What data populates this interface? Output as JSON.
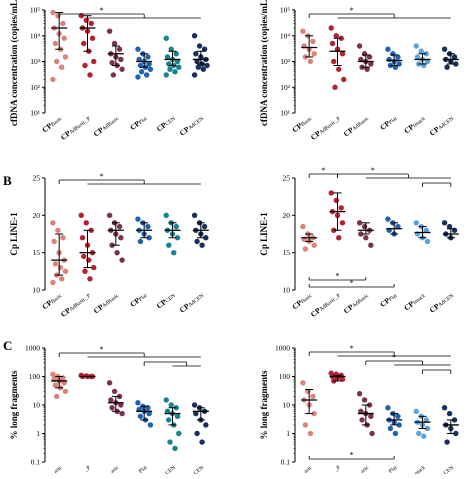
{
  "figure": {
    "panel_labels": [
      "B",
      "C"
    ]
  },
  "chart_data": [
    {
      "id": "A-left",
      "type": "scatter",
      "panel": "A",
      "ylabel": "cfDNA concentration (copies/mL)",
      "yscale": "log",
      "ylim": [
        10,
        100000
      ],
      "ytick_labels": [
        "10¹",
        "10²",
        "10³",
        "10⁴",
        "10⁵"
      ],
      "categories": [
        [
          "CP",
          "Basic"
        ],
        [
          "CP",
          "AdBasic_P"
        ],
        [
          "CP",
          "AdBasic"
        ],
        [
          "CP",
          "Plat"
        ],
        [
          "CP",
          "CEN"
        ],
        [
          "CP",
          "AdCEN"
        ]
      ],
      "colors": [
        "#d98478",
        "#b4222f",
        "#7b3348",
        "#1f63b0",
        "#15848f",
        "#1a2f5c"
      ],
      "summary": [
        [
          20000,
          3000,
          80000
        ],
        [
          20000,
          2500,
          60000
        ],
        [
          2000,
          700,
          4000
        ],
        [
          1000,
          600,
          2000
        ],
        [
          1200,
          700,
          2500
        ],
        [
          1200,
          800,
          2500
        ]
      ],
      "points": [
        [
          80000,
          60000,
          30000,
          20000,
          12000,
          8000,
          5000,
          3000,
          1500,
          1000,
          600,
          200
        ],
        [
          60000,
          40000,
          30000,
          20000,
          15000,
          8000,
          5000,
          2500,
          1000,
          700,
          300
        ],
        [
          15000,
          5000,
          3000,
          2000,
          1500,
          1200,
          900,
          700,
          500,
          300
        ],
        [
          3000,
          2000,
          1500,
          1200,
          1000,
          800,
          700,
          600,
          500,
          400,
          300,
          250
        ],
        [
          8000,
          3000,
          2000,
          1500,
          1200,
          1000,
          800,
          700,
          600,
          500,
          400,
          300
        ],
        [
          10000,
          4000,
          3000,
          2000,
          1500,
          1200,
          1000,
          800,
          700,
          600,
          500,
          300
        ]
      ],
      "brackets": [
        {
          "left": 0,
          "right_start": 1,
          "right_end": 5,
          "level": 0,
          "star": "*"
        }
      ]
    },
    {
      "id": "A-right",
      "type": "scatter",
      "panel": "A",
      "ylabel": "cfDNA concentration (copies/mL)",
      "yscale": "log",
      "ylim": [
        10,
        100000
      ],
      "ytick_labels": [
        "10¹",
        "10²",
        "10³",
        "10⁴",
        "10⁵"
      ],
      "categories": [
        [
          "CP",
          "Basic"
        ],
        [
          "CP",
          "AdBasic_P"
        ],
        [
          "CP",
          "AdBasic"
        ],
        [
          "CP",
          "Plat"
        ],
        [
          "CP",
          "Imuck"
        ],
        [
          "CP",
          "AdCEN"
        ]
      ],
      "colors": [
        "#d98478",
        "#b4222f",
        "#7b3348",
        "#1f63b0",
        "#5fa3dd",
        "#1a2f5c"
      ],
      "summary": [
        [
          3500,
          1500,
          10000
        ],
        [
          2500,
          700,
          8000
        ],
        [
          1000,
          600,
          1800
        ],
        [
          1100,
          700,
          1800
        ],
        [
          1200,
          800,
          2000
        ],
        [
          1200,
          800,
          2000
        ]
      ],
      "points": [
        [
          15000,
          10000,
          6000,
          4000,
          3000,
          2000,
          1500,
          1000
        ],
        [
          20000,
          10000,
          8000,
          5000,
          3000,
          2000,
          1000,
          500,
          200,
          100
        ],
        [
          4000,
          2000,
          1500,
          1200,
          1000,
          800,
          600,
          500
        ],
        [
          3000,
          2000,
          1500,
          1200,
          1000,
          800,
          700,
          600
        ],
        [
          4000,
          2500,
          2000,
          1500,
          1200,
          1000,
          800,
          700
        ],
        [
          3000,
          2000,
          1500,
          1200,
          1000,
          800,
          600
        ]
      ],
      "brackets": [
        {
          "left": 0,
          "right_start": 1,
          "right_end": 5,
          "level": 0,
          "star": "*"
        }
      ]
    },
    {
      "id": "B-left",
      "type": "scatter",
      "panel": "B",
      "ylabel": "Cp LINE-1",
      "yscale": "linear",
      "ylim": [
        10,
        25
      ],
      "ytick_labels": [
        "10",
        "15",
        "20",
        "25"
      ],
      "categories": [
        [
          "CP",
          "Basic"
        ],
        [
          "CP",
          "AdBasic_P"
        ],
        [
          "CP",
          "AdBasic"
        ],
        [
          "CP",
          "Plat"
        ],
        [
          "CP",
          "CEN"
        ],
        [
          "CP",
          "AdCEN"
        ]
      ],
      "colors": [
        "#d98478",
        "#b4222f",
        "#7b3348",
        "#1f63b0",
        "#15848f",
        "#1a2f5c"
      ],
      "summary": [
        [
          14,
          12,
          17.5
        ],
        [
          15,
          13,
          18
        ],
        [
          18,
          16,
          19
        ],
        [
          18,
          17,
          19
        ],
        [
          18,
          17,
          19
        ],
        [
          18,
          17,
          19
        ]
      ],
      "points": [
        [
          19,
          18,
          17,
          16.5,
          15,
          14,
          13.5,
          13,
          12.5,
          12,
          11.5,
          11
        ],
        [
          20,
          19,
          18,
          17,
          16,
          15,
          14.5,
          14,
          13,
          12.5,
          11.5
        ],
        [
          20,
          19,
          18.5,
          18,
          17.5,
          17,
          16,
          15,
          14
        ],
        [
          19.5,
          19,
          18.5,
          18,
          17.5,
          17,
          16.5
        ],
        [
          20,
          19,
          18.5,
          18,
          17.5,
          17,
          16,
          15
        ],
        [
          20,
          19,
          18.5,
          18,
          17.5,
          17,
          16.5,
          16
        ]
      ],
      "brackets": [
        {
          "left": 0,
          "right_start": 1,
          "right_end": 5,
          "level": 0,
          "star": "*"
        }
      ]
    },
    {
      "id": "B-right",
      "type": "scatter",
      "panel": "B",
      "ylabel": "Cp LINE-1",
      "yscale": "linear",
      "ylim": [
        10,
        25
      ],
      "ytick_labels": [
        "10",
        "15",
        "20",
        "25"
      ],
      "categories": [
        [
          "CP",
          "Basic"
        ],
        [
          "CP",
          "AdBasic_P"
        ],
        [
          "CP",
          "AdBasic"
        ],
        [
          "CP",
          "Plat"
        ],
        [
          "CP",
          "Imuck"
        ],
        [
          "CP",
          "AdCEN"
        ]
      ],
      "colors": [
        "#d98478",
        "#b4222f",
        "#7b3348",
        "#1f63b0",
        "#5fa3dd",
        "#1a2f5c"
      ],
      "summary": [
        [
          17,
          16.5,
          17.5
        ],
        [
          20.5,
          18,
          23
        ],
        [
          18,
          17.5,
          19
        ],
        [
          18.2,
          17.5,
          19
        ],
        [
          17.7,
          17,
          18.5
        ],
        [
          17.5,
          17,
          18.2
        ]
      ],
      "points": [
        [
          18.5,
          17.5,
          17,
          16.8,
          16.5,
          16,
          15.5
        ],
        [
          23,
          22,
          21,
          20.5,
          20,
          19,
          18,
          17
        ],
        [
          19,
          18.5,
          18,
          17.5,
          17,
          16
        ],
        [
          19.5,
          19,
          18.5,
          18,
          17.5
        ],
        [
          19,
          18.5,
          18,
          17.5,
          17,
          16.5
        ],
        [
          19,
          18.5,
          18,
          17.5,
          17
        ]
      ],
      "brackets": [
        {
          "left": 0,
          "right_start": 1,
          "right_end": 1,
          "level": 0,
          "star": "*"
        },
        {
          "left": 1,
          "right_start": 2,
          "right_end": 5,
          "level": 0,
          "star": "*"
        },
        {
          "left": 4,
          "right_start": 5,
          "right_end": 5,
          "level": 1,
          "star": ""
        }
      ],
      "bottom_brackets": [
        {
          "from": 0,
          "to": 3,
          "level": 0,
          "star": "*"
        },
        {
          "from": 0,
          "to": 2,
          "level": 1,
          "star": "*"
        }
      ]
    },
    {
      "id": "C-left",
      "type": "scatter",
      "panel": "C",
      "ylabel": "% long fragments",
      "yscale": "log",
      "ylim": [
        0.1,
        1000
      ],
      "ytick_labels": [
        "0.1",
        "1",
        "10",
        "100",
        "1000"
      ],
      "categories": [
        [
          "",
          "asic"
        ],
        [
          "",
          "_P"
        ],
        [
          "",
          "asic"
        ],
        [
          "",
          "Plat"
        ],
        [
          "",
          "CEN"
        ],
        [
          "",
          "CEN"
        ]
      ],
      "colors": [
        "#d98478",
        "#b4222f",
        "#7b3348",
        "#1f63b0",
        "#15848f",
        "#1a2f5c"
      ],
      "summary": [
        [
          70,
          40,
          100
        ],
        [
          100,
          100,
          100
        ],
        [
          12,
          6,
          20
        ],
        [
          6,
          3,
          9
        ],
        [
          5,
          2,
          8
        ],
        [
          6,
          3,
          8
        ]
      ],
      "points": [
        [
          120,
          100,
          90,
          80,
          70,
          60,
          50,
          40,
          30,
          20
        ],
        [
          110,
          105,
          100,
          100,
          100,
          100
        ],
        [
          60,
          30,
          20,
          15,
          12,
          10,
          8,
          6,
          5
        ],
        [
          12,
          9,
          8,
          7,
          6,
          5,
          4,
          3,
          2
        ],
        [
          15,
          10,
          8,
          6,
          5,
          4,
          3,
          2,
          1,
          0.5,
          0.3
        ],
        [
          10,
          8,
          6,
          5,
          3,
          2,
          1,
          0.5
        ]
      ],
      "brackets": [
        {
          "left": 0,
          "right_start": 1,
          "right_end": 5,
          "level": 0,
          "star": "*"
        },
        {
          "left": 3,
          "right_start": 4,
          "right_end": 5,
          "level": 1,
          "star": ""
        }
      ]
    },
    {
      "id": "C-right",
      "type": "scatter",
      "panel": "C",
      "ylabel": "% long fragments",
      "yscale": "log",
      "ylim": [
        0.1,
        1000
      ],
      "ytick_labels": [
        "0.1",
        "1",
        "10",
        "100",
        "1000"
      ],
      "categories": [
        [
          "",
          "asic"
        ],
        [
          "",
          "_P"
        ],
        [
          "",
          "asic"
        ],
        [
          "",
          "Plat"
        ],
        [
          "",
          "muck"
        ],
        [
          "",
          "CEN"
        ]
      ],
      "colors": [
        "#d98478",
        "#b4222f",
        "#7b3348",
        "#1f63b0",
        "#5fa3dd",
        "#1a2f5c"
      ],
      "summary": [
        [
          15,
          5,
          35
        ],
        [
          100,
          70,
          110
        ],
        [
          5,
          2,
          10
        ],
        [
          3,
          2,
          5
        ],
        [
          2.5,
          1.5,
          4
        ],
        [
          2,
          1,
          3
        ]
      ],
      "points": [
        [
          60,
          30,
          20,
          15,
          10,
          5,
          2,
          1
        ],
        [
          130,
          120,
          110,
          100,
          90,
          80,
          70
        ],
        [
          25,
          15,
          10,
          6,
          5,
          4,
          3,
          2,
          1
        ],
        [
          8,
          5,
          4,
          3,
          2.5,
          2,
          1.5,
          1
        ],
        [
          6,
          4,
          3,
          2.5,
          2,
          1.5,
          1,
          0.8
        ],
        [
          8,
          5,
          3,
          2,
          1.5,
          1,
          0.5
        ]
      ],
      "brackets": [
        {
          "left": 0,
          "right_start": 1,
          "right_end": 5,
          "level": 0,
          "star": "*"
        },
        {
          "left": 2,
          "right_start": 3,
          "right_end": 5,
          "level": 1,
          "star": "*"
        },
        {
          "left": 4,
          "right_start": 5,
          "right_end": 5,
          "level": 2,
          "star": ""
        }
      ],
      "bottom_brackets": [
        {
          "from": 0,
          "to": 3,
          "level": 0,
          "star": "*"
        }
      ]
    }
  ]
}
